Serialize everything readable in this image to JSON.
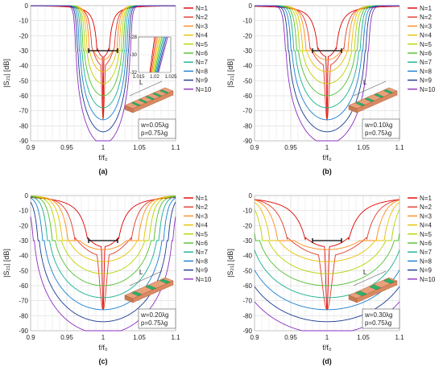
{
  "chart_data": [
    {
      "type": "line",
      "caption": "(a)",
      "xlabel": "f/f₀",
      "ylabel": "|S₂₁| [dB]",
      "xlim": [
        0.9,
        1.1
      ],
      "ylim": [
        -90,
        0
      ],
      "xticks": [
        "0.9",
        "0.95",
        "1",
        "1.05",
        "1.1"
      ],
      "yticks": [
        "0",
        "-10",
        "-20",
        "-30",
        "-40",
        "-50",
        "-60",
        "-70",
        "-80",
        "-90"
      ],
      "grid": true,
      "legend_position": "right",
      "series": [
        {
          "name": "N=1",
          "values": [
            [
              0.9,
              -0.1
            ],
            [
              0.97,
              -0.3
            ],
            [
              0.985,
              -3
            ],
            [
              0.993,
              -12
            ],
            [
              0.998,
              -28
            ],
            [
              1.0,
              -75
            ],
            [
              1.002,
              -28
            ],
            [
              1.007,
              -12
            ],
            [
              1.015,
              -3
            ],
            [
              1.03,
              -0.3
            ],
            [
              1.1,
              -0.1
            ]
          ]
        },
        {
          "name": "N=2",
          "values": [
            [
              0.9,
              -0.1
            ],
            [
              0.97,
              -0.8
            ],
            [
              0.98,
              -10
            ],
            [
              0.99,
              -40
            ],
            [
              1.0,
              -80
            ],
            [
              1.01,
              -40
            ],
            [
              1.02,
              -10
            ],
            [
              1.03,
              -0.8
            ],
            [
              1.1,
              -0.1
            ]
          ]
        },
        {
          "name": "N=3"
        },
        {
          "name": "N=4"
        },
        {
          "name": "N=5"
        },
        {
          "name": "N=6"
        },
        {
          "name": "N=7"
        },
        {
          "name": "N=8"
        },
        {
          "name": "N=9"
        },
        {
          "name": "N=10"
        }
      ],
      "bandwidth_marker": {
        "x": [
          0.98,
          1.02
        ],
        "y": -30
      },
      "annotations": [
        "w=0.05λg",
        "p=0.75λg",
        "L"
      ],
      "inset": {
        "xlim": [
          1.015,
          1.025
        ],
        "ylim": [
          -32,
          -28
        ],
        "xticks": [
          "1.015",
          "1.02",
          "1.025"
        ],
        "yticks": [
          "-28",
          "-30",
          "-32"
        ]
      }
    },
    {
      "type": "line",
      "caption": "(b)",
      "xlabel": "f/f₀",
      "ylabel": "|S₂₁| [dB]",
      "xlim": [
        0.9,
        1.1
      ],
      "ylim": [
        -90,
        0
      ],
      "xticks": [
        "0.9",
        "0.95",
        "1",
        "1.05",
        "1.1"
      ],
      "yticks": [
        "0",
        "-10",
        "-20",
        "-30",
        "-40",
        "-50",
        "-60",
        "-70",
        "-80",
        "-90"
      ],
      "grid": true,
      "legend_position": "right",
      "series": [
        {
          "name": "N=1"
        },
        {
          "name": "N=2"
        },
        {
          "name": "N=3"
        },
        {
          "name": "N=4"
        },
        {
          "name": "N=5"
        },
        {
          "name": "N=6"
        },
        {
          "name": "N=7"
        },
        {
          "name": "N=8"
        },
        {
          "name": "N=9"
        },
        {
          "name": "N=10"
        }
      ],
      "bandwidth_marker": {
        "x": [
          0.98,
          1.02
        ],
        "y": -30
      },
      "annotations": [
        "w=0.10λg",
        "p=0.75λg",
        "L"
      ]
    },
    {
      "type": "line",
      "caption": "(c)",
      "xlabel": "f/f₀",
      "ylabel": "|S₂₁| [dB]",
      "xlim": [
        0.9,
        1.1
      ],
      "ylim": [
        -90,
        0
      ],
      "xticks": [
        "0.9",
        "0.95",
        "1",
        "1.05",
        "1.1"
      ],
      "yticks": [
        "0",
        "-10",
        "-20",
        "-30",
        "-40",
        "-50",
        "-60",
        "-70",
        "-80",
        "-90"
      ],
      "grid": true,
      "legend_position": "right",
      "series": [
        {
          "name": "N=1"
        },
        {
          "name": "N=2"
        },
        {
          "name": "N=3"
        },
        {
          "name": "N=4"
        },
        {
          "name": "N=5"
        },
        {
          "name": "N=6"
        },
        {
          "name": "N=7"
        },
        {
          "name": "N=8"
        },
        {
          "name": "N=9"
        },
        {
          "name": "N=10"
        }
      ],
      "bandwidth_marker": {
        "x": [
          0.98,
          1.02
        ],
        "y": -30
      },
      "annotations": [
        "w=0.20λg",
        "p=0.75λg",
        "L"
      ]
    },
    {
      "type": "line",
      "caption": "(d)",
      "xlabel": "f/f₀",
      "ylabel": "|S₂₁| [dB]",
      "xlim": [
        0.9,
        1.1
      ],
      "ylim": [
        -90,
        0
      ],
      "xticks": [
        "0.9",
        "0.95",
        "1",
        "1.05",
        "1.1"
      ],
      "yticks": [
        "0",
        "-10",
        "-20",
        "-30",
        "-40",
        "-50",
        "-60",
        "-70",
        "-80",
        "-90"
      ],
      "grid": true,
      "legend_position": "right",
      "series": [
        {
          "name": "N=1"
        },
        {
          "name": "N=2"
        },
        {
          "name": "N=3"
        },
        {
          "name": "N=4"
        },
        {
          "name": "N=5"
        },
        {
          "name": "N=6"
        },
        {
          "name": "N=7"
        },
        {
          "name": "N=8"
        },
        {
          "name": "N=9"
        },
        {
          "name": "N=10"
        }
      ],
      "bandwidth_marker": {
        "x": [
          0.98,
          1.02
        ],
        "y": -30
      },
      "annotations": [
        "w=0.30λg",
        "p=0.75λg",
        "L"
      ]
    }
  ],
  "colors": [
    "#e00000",
    "#e03a2a",
    "#ff8c1a",
    "#e6c200",
    "#b8d400",
    "#50c030",
    "#18b090",
    "#1a7fd0",
    "#1a3a90",
    "#8a30c0"
  ],
  "widths": [
    "0.05",
    "0.10",
    "0.20",
    "0.30"
  ],
  "stub_color": "#e8a07a",
  "stub_edge": "#b5603a",
  "strip_color": "#2ab36a"
}
